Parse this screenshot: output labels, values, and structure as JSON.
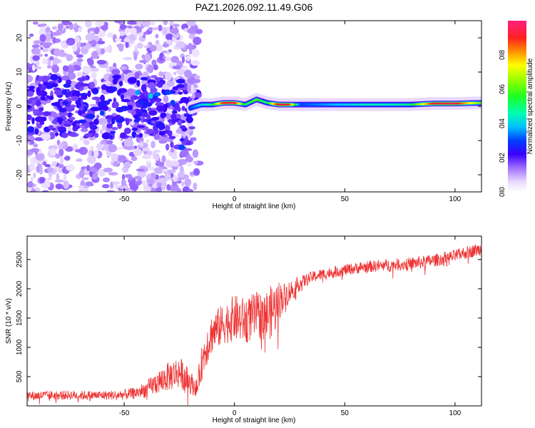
{
  "chart_data": [
    {
      "type": "heatmap",
      "title": "PAZ1.2026.092.11.49.G06",
      "xlabel": "Height of straight line (km)",
      "ylabel": "Frequency (Hz)",
      "xlim": [
        -94,
        112
      ],
      "ylim": [
        -25,
        25
      ],
      "x_ticks": [
        -50,
        0,
        50,
        100
      ],
      "x_tick_labels": [
        "-50",
        "0",
        "50",
        "100"
      ],
      "y_ticks": [
        -20,
        -10,
        0,
        10,
        20
      ],
      "y_tick_labels": [
        "-20",
        "-10",
        "0",
        "10",
        "20"
      ],
      "colorbar": {
        "label": "Normalized spectral amplitude",
        "range": [
          0,
          1
        ],
        "ticks": [
          0.0,
          0.2,
          0.4,
          0.6,
          0.8
        ],
        "tick_labels": [
          "0.0",
          "0.2",
          "0.4",
          "0.6",
          "0.8"
        ]
      },
      "description_series": [
        {
          "name": "main frequency trace",
          "x": [
            -20,
            -15,
            -10,
            -5,
            0,
            5,
            10,
            15,
            20,
            25,
            30,
            40,
            50,
            60,
            70,
            80,
            90,
            100,
            112
          ],
          "frequency": [
            -0.5,
            0.5,
            0.5,
            1,
            1,
            0.5,
            2,
            1,
            0.5,
            0.5,
            0.5,
            0.5,
            0.5,
            0.5,
            0.5,
            0.5,
            0.8,
            0.8,
            1
          ],
          "peak_amplitude": [
            0.3,
            0.4,
            0.5,
            0.9,
            0.95,
            0.5,
            0.6,
            0.5,
            0.95,
            0.9,
            0.3,
            0.35,
            0.4,
            0.45,
            0.45,
            0.5,
            0.9,
            0.95,
            0.6
          ]
        }
      ],
      "grid": false
    },
    {
      "type": "line",
      "xlabel": "Height of straight line (km)",
      "ylabel": "SNR (10 * v/v)",
      "xlim": [
        -94,
        112
      ],
      "ylim": [
        0,
        2900
      ],
      "x_ticks": [
        -50,
        0,
        50,
        100
      ],
      "x_tick_labels": [
        "-50",
        "0",
        "50",
        "100"
      ],
      "y_ticks": [
        500,
        1000,
        1500,
        2000,
        2500
      ],
      "y_tick_labels": [
        "500",
        "1000",
        "1500",
        "2000",
        "2500"
      ],
      "series": [
        {
          "name": "SNR",
          "color": "#ee3333",
          "x": [
            -94,
            -85,
            -75,
            -65,
            -55,
            -50,
            -45,
            -40,
            -35,
            -30,
            -25,
            -20,
            -17,
            -15,
            -13,
            -10,
            -5,
            0,
            5,
            10,
            15,
            18,
            20,
            22,
            25,
            30,
            35,
            40,
            50,
            60,
            70,
            80,
            90,
            100,
            105,
            112
          ],
          "y": [
            170,
            180,
            185,
            180,
            185,
            190,
            220,
            280,
            400,
            500,
            580,
            400,
            300,
            700,
            1000,
            1250,
            1400,
            1500,
            1450,
            1550,
            1550,
            1650,
            1800,
            1850,
            1950,
            2100,
            2200,
            2250,
            2320,
            2380,
            2400,
            2430,
            2480,
            2560,
            2620,
            2680
          ],
          "noise": [
            80,
            80,
            80,
            80,
            80,
            90,
            100,
            140,
            200,
            250,
            280,
            200,
            150,
            300,
            350,
            350,
            350,
            400,
            400,
            400,
            450,
            450,
            350,
            250,
            200,
            120,
            100,
            100,
            100,
            100,
            110,
            110,
            110,
            110,
            110,
            110
          ]
        }
      ],
      "grid": false
    }
  ]
}
